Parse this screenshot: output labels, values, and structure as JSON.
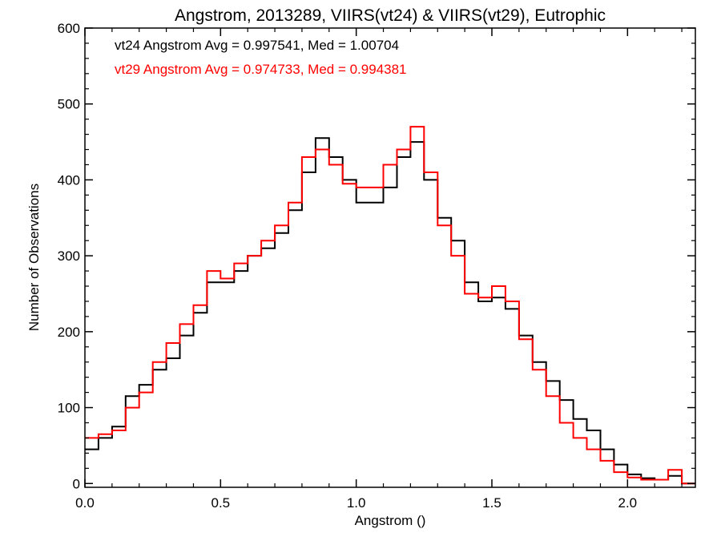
{
  "chart_data": {
    "type": "line",
    "title": "Angstrom, 2013289, VIIRS(vt24) & VIIRS(vt29), Eutrophic",
    "xlabel": "Angstrom ()",
    "ylabel": "Number of Observations",
    "xlim": [
      0.0,
      2.25
    ],
    "ylim": [
      -5,
      600
    ],
    "x_ticks": [
      0.0,
      0.5,
      1.0,
      1.5,
      2.0
    ],
    "x_tick_labels": [
      "0.0",
      "0.5",
      "1.0",
      "1.5",
      "2.0"
    ],
    "y_ticks": [
      0,
      100,
      200,
      300,
      400,
      500,
      600
    ],
    "y_tick_labels": [
      "0",
      "100",
      "200",
      "300",
      "400",
      "500",
      "600"
    ],
    "grid": false,
    "step": true,
    "annotations": [
      {
        "text": "vt24 Angstrom Avg = 0.997541, Med = 1.00704",
        "color": "#000000"
      },
      {
        "text": "vt29 Angstrom Avg = 0.974733, Med = 0.994381",
        "color": "#ff0000"
      }
    ],
    "series": [
      {
        "color": "#000000",
        "x": [
          0.0,
          0.05,
          0.1,
          0.15,
          0.2,
          0.25,
          0.3,
          0.35,
          0.4,
          0.45,
          0.5,
          0.55,
          0.6,
          0.65,
          0.7,
          0.75,
          0.8,
          0.85,
          0.9,
          0.95,
          1.0,
          1.05,
          1.1,
          1.15,
          1.2,
          1.25,
          1.3,
          1.35,
          1.4,
          1.45,
          1.5,
          1.55,
          1.6,
          1.65,
          1.7,
          1.75,
          1.8,
          1.85,
          1.9,
          1.95,
          2.0,
          2.05,
          2.1,
          2.15,
          2.2,
          2.25
        ],
        "values": [
          45,
          60,
          75,
          115,
          130,
          150,
          165,
          195,
          225,
          265,
          265,
          280,
          300,
          310,
          330,
          360,
          410,
          455,
          430,
          400,
          370,
          370,
          390,
          430,
          450,
          400,
          350,
          320,
          265,
          240,
          245,
          230,
          195,
          160,
          135,
          110,
          85,
          70,
          45,
          25,
          12,
          7,
          5,
          10,
          0,
          0
        ]
      },
      {
        "color": "#ff0000",
        "x": [
          0.0,
          0.05,
          0.1,
          0.15,
          0.2,
          0.25,
          0.3,
          0.35,
          0.4,
          0.45,
          0.5,
          0.55,
          0.6,
          0.65,
          0.7,
          0.75,
          0.8,
          0.85,
          0.9,
          0.95,
          1.0,
          1.05,
          1.1,
          1.15,
          1.2,
          1.25,
          1.3,
          1.35,
          1.4,
          1.45,
          1.5,
          1.55,
          1.6,
          1.65,
          1.7,
          1.75,
          1.8,
          1.85,
          1.9,
          1.95,
          2.0,
          2.05,
          2.1,
          2.15,
          2.2,
          2.25
        ],
        "values": [
          60,
          65,
          70,
          100,
          120,
          160,
          185,
          210,
          235,
          280,
          270,
          290,
          300,
          320,
          340,
          370,
          430,
          440,
          420,
          395,
          390,
          390,
          420,
          440,
          470,
          410,
          340,
          300,
          250,
          245,
          260,
          240,
          190,
          150,
          115,
          80,
          60,
          45,
          30,
          15,
          8,
          5,
          5,
          18,
          0,
          0
        ]
      }
    ]
  }
}
